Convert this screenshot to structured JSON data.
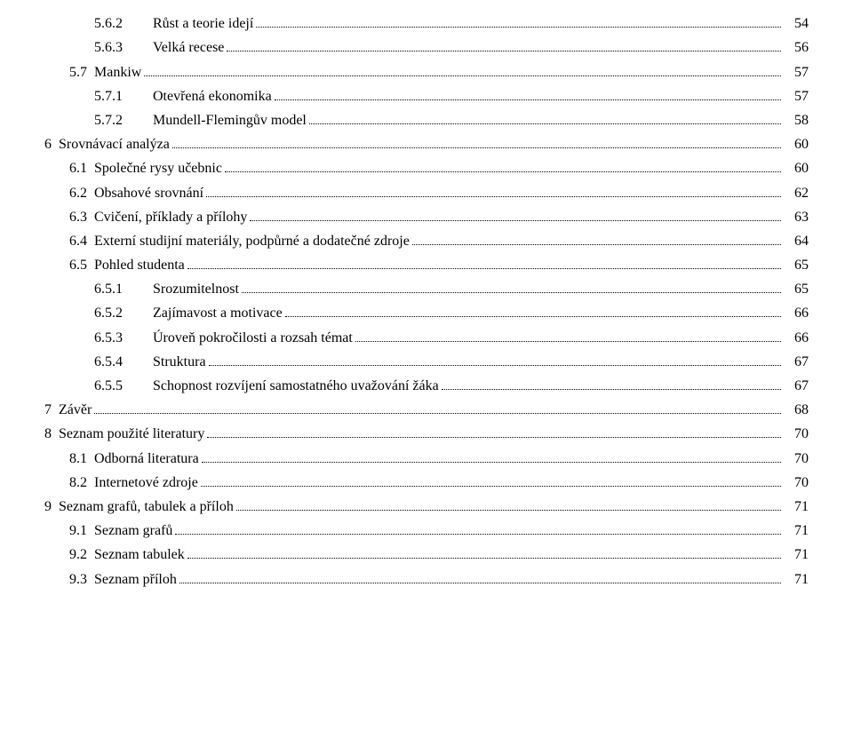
{
  "typography": {
    "font_family": "Times New Roman",
    "font_size_pt": 12,
    "text_color": "#000000",
    "background_color": "#ffffff",
    "dot_leader_color": "#000000"
  },
  "toc": [
    {
      "indent": 2,
      "number": "5.6.2",
      "title": "Růst a teorie idejí",
      "page": "54"
    },
    {
      "indent": 2,
      "number": "5.6.3",
      "title": "Velká recese",
      "page": "56"
    },
    {
      "indent": 1,
      "number": "5.7",
      "title": "Mankiw",
      "page": "57"
    },
    {
      "indent": 2,
      "number": "5.7.1",
      "title": "Otevřená ekonomika",
      "page": "57"
    },
    {
      "indent": 2,
      "number": "5.7.2",
      "title": "Mundell-Flemingův model",
      "page": "58"
    },
    {
      "indent": 0,
      "number": "6",
      "title": "Srovnávací analýza",
      "page": "60"
    },
    {
      "indent": 1,
      "number": "6.1",
      "title": "Společné rysy učebnic",
      "page": "60"
    },
    {
      "indent": 1,
      "number": "6.2",
      "title": "Obsahové srovnání",
      "page": "62"
    },
    {
      "indent": 1,
      "number": "6.3",
      "title": "Cvičení, příklady a přílohy",
      "page": "63"
    },
    {
      "indent": 1,
      "number": "6.4",
      "title": "Externí studijní materiály, podpůrné a dodatečné zdroje",
      "page": "64"
    },
    {
      "indent": 1,
      "number": "6.5",
      "title": "Pohled studenta",
      "page": "65"
    },
    {
      "indent": 2,
      "number": "6.5.1",
      "title": "Srozumitelnost",
      "page": "65"
    },
    {
      "indent": 2,
      "number": "6.5.2",
      "title": "Zajímavost a motivace",
      "page": "66"
    },
    {
      "indent": 2,
      "number": "6.5.3",
      "title": "Úroveň pokročilosti a rozsah témat",
      "page": "66"
    },
    {
      "indent": 2,
      "number": "6.5.4",
      "title": "Struktura",
      "page": "67"
    },
    {
      "indent": 2,
      "number": "6.5.5",
      "title": "Schopnost rozvíjení samostatného uvažování žáka",
      "page": "67"
    },
    {
      "indent": 0,
      "number": "7",
      "title": "Závěr",
      "page": "68"
    },
    {
      "indent": 0,
      "number": "8",
      "title": "Seznam použité literatury",
      "page": "70"
    },
    {
      "indent": 1,
      "number": "8.1",
      "title": "Odborná literatura",
      "page": "70"
    },
    {
      "indent": 1,
      "number": "8.2",
      "title": "Internetové zdroje",
      "page": "70"
    },
    {
      "indent": 0,
      "number": "9",
      "title": "Seznam grafů, tabulek a příloh",
      "page": "71"
    },
    {
      "indent": 1,
      "number": "9.1",
      "title": "Seznam grafů",
      "page": "71"
    },
    {
      "indent": 1,
      "number": "9.2",
      "title": "Seznam tabulek",
      "page": "71"
    },
    {
      "indent": 1,
      "number": "9.3",
      "title": "Seznam příloh",
      "page": "71"
    }
  ]
}
